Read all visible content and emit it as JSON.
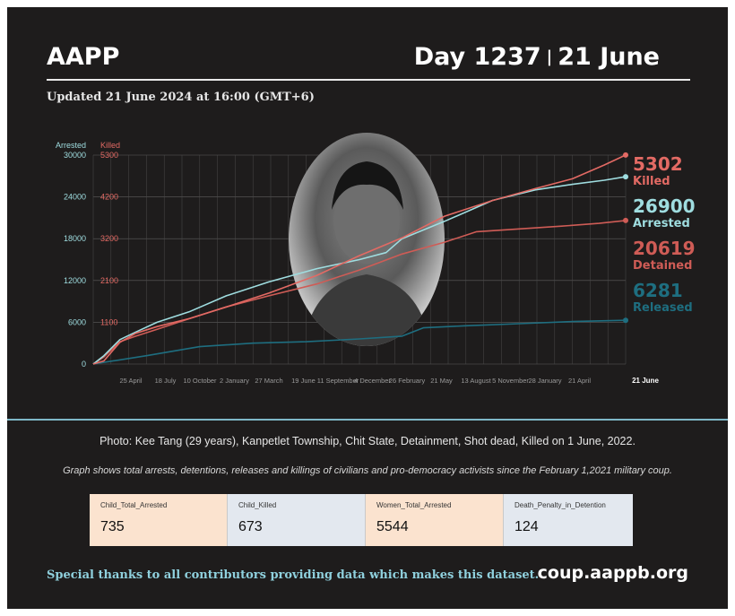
{
  "header": {
    "brand": "AAPP",
    "day": "Day 1237",
    "sep": "|",
    "date": "21 June",
    "updated": "Updated 21 June 2024 at 16:00 (GMT+6)"
  },
  "colors": {
    "arrested": "#9fdde0",
    "killed": "#e36a64",
    "detained": "#cf5c56",
    "released": "#1e6e80",
    "background": "#1e1c1c"
  },
  "chart_data": {
    "type": "line",
    "axis_titles": {
      "left": "Arrested",
      "right": "Killed"
    },
    "left_ticks": [
      "30000",
      "24000",
      "18000",
      "12000",
      "6000",
      "0"
    ],
    "right_ticks": [
      "5300",
      "4200",
      "3200",
      "2100",
      "1100"
    ],
    "x_ticks": [
      "25 April",
      "18 July",
      "10 October",
      "2 January",
      "27 March",
      "19 June",
      "11 September",
      "4 December",
      "26 February",
      "21 May",
      "13 August",
      "5 November",
      "28 January",
      "21 April"
    ],
    "x_end_label": "21 June",
    "x_range": [
      "2021-02-01",
      "2024-06-21"
    ],
    "ylim_left": [
      0,
      30000
    ],
    "ylim_right": [
      0,
      5300
    ],
    "grid": true,
    "photo_description": "Portrait photo of Kee Tang overlaid in an oval at the chart center",
    "series": [
      {
        "name": "Killed",
        "axis": "right",
        "value_label": "5302",
        "x_frac": [
          0,
          0.02,
          0.05,
          0.08,
          0.12,
          0.18,
          0.25,
          0.33,
          0.42,
          0.5,
          0.58,
          0.66,
          0.75,
          0.83,
          0.9,
          0.96,
          1.0
        ],
        "values": [
          0,
          80,
          550,
          780,
          950,
          1150,
          1450,
          1800,
          2250,
          2750,
          3200,
          3750,
          4150,
          4450,
          4700,
          5050,
          5302
        ]
      },
      {
        "name": "Arrested",
        "axis": "left",
        "value_label": "26900",
        "x_frac": [
          0,
          0.02,
          0.05,
          0.08,
          0.12,
          0.18,
          0.25,
          0.33,
          0.42,
          0.5,
          0.55,
          0.58,
          0.66,
          0.75,
          0.83,
          0.9,
          0.96,
          1.0
        ],
        "values": [
          0,
          1200,
          3500,
          4600,
          6000,
          7500,
          9800,
          11800,
          13700,
          15000,
          16000,
          18000,
          20500,
          23500,
          25000,
          25800,
          26400,
          26900
        ]
      },
      {
        "name": "Detained",
        "axis": "left",
        "value_label": "20619",
        "x_frac": [
          0,
          0.02,
          0.05,
          0.08,
          0.12,
          0.18,
          0.25,
          0.33,
          0.42,
          0.5,
          0.58,
          0.66,
          0.72,
          0.8,
          0.88,
          0.95,
          1.0
        ],
        "values": [
          0,
          1000,
          3200,
          4000,
          5000,
          6500,
          8200,
          9800,
          11500,
          13500,
          15800,
          17500,
          19000,
          19400,
          19800,
          20200,
          20619
        ]
      },
      {
        "name": "Released",
        "axis": "left",
        "value_label": "6281",
        "x_frac": [
          0,
          0.1,
          0.2,
          0.3,
          0.4,
          0.5,
          0.58,
          0.62,
          0.7,
          0.8,
          0.9,
          1.0
        ],
        "values": [
          0,
          1200,
          2500,
          3000,
          3200,
          3600,
          4000,
          5200,
          5500,
          5800,
          6100,
          6281
        ]
      }
    ],
    "end_labels": [
      {
        "value": "5302",
        "name": "Killed"
      },
      {
        "value": "26900",
        "name": "Arrested"
      },
      {
        "value": "20619",
        "name": "Detained"
      },
      {
        "value": "6281",
        "name": "Released"
      }
    ]
  },
  "caption": "Photo: Kee Tang (29 years), Kanpetlet Township, Chit State, Detainment, Shot dead, Killed on 1 June, 2022.",
  "note": "Graph shows total arrests, detentions, releases and killings of civilians and pro-democracy activists since the February 1,2021 military coup.",
  "stats": [
    {
      "label": "Child_Total_Arrested",
      "value": "735"
    },
    {
      "label": "Child_Killed",
      "value": "673"
    },
    {
      "label": "Women_Total_Arrested",
      "value": "5544"
    },
    {
      "label": "Death_Penalty_in_Detention",
      "value": "124"
    }
  ],
  "footer": {
    "thanks": "Special thanks to all contributors providing data which makes this dataset.",
    "url": "coup.aappb.org"
  }
}
